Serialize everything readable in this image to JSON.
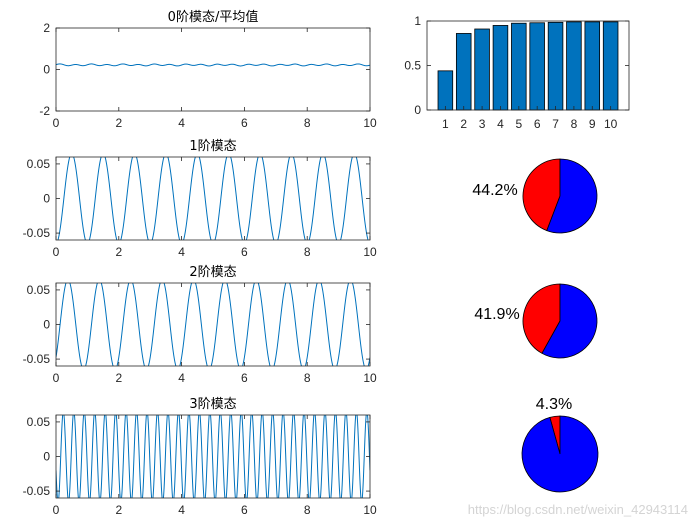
{
  "chart_data": [
    {
      "type": "line",
      "title": "0阶模态/平均值",
      "xlim": [
        0,
        10
      ],
      "ylim": [
        -2,
        2
      ],
      "xticks": [
        "0",
        "2",
        "4",
        "6",
        "8",
        "10"
      ],
      "yticks": [
        "-2",
        "0",
        "2"
      ],
      "series": [
        {
          "mean": 0.22,
          "amplitude": 0.035,
          "cycles_per_unit": 2.0,
          "color": "#0072bd"
        }
      ]
    },
    {
      "type": "bar",
      "categories": [
        "1",
        "2",
        "3",
        "4",
        "5",
        "6",
        "7",
        "8",
        "9",
        "10"
      ],
      "values": [
        0.44,
        0.86,
        0.91,
        0.95,
        0.975,
        0.98,
        0.985,
        0.99,
        0.99,
        0.99
      ],
      "ylim": [
        0,
        1
      ],
      "yticks": [
        "0",
        "0.5",
        "1"
      ],
      "color": "#0072bd"
    },
    {
      "type": "line",
      "title": "1阶模态",
      "xlim": [
        0,
        10
      ],
      "ylim": [
        -0.06,
        0.06
      ],
      "xticks": [
        "0",
        "2",
        "4",
        "6",
        "8",
        "10"
      ],
      "yticks": [
        "0.05",
        "0",
        "-0.05"
      ],
      "series": [
        {
          "amplitude": 0.065,
          "cycles_per_unit": 1.0,
          "phase_cycles": 0.5,
          "color": "#0072bd"
        }
      ]
    },
    {
      "type": "pie",
      "values": [
        44.2,
        55.8
      ],
      "labels": [
        "44.2%",
        ""
      ],
      "colors": [
        "#ff0000",
        "#0000ff"
      ]
    },
    {
      "type": "line",
      "title": "2阶模态",
      "xlim": [
        0,
        10
      ],
      "ylim": [
        -0.06,
        0.06
      ],
      "xticks": [
        "0",
        "2",
        "4",
        "6",
        "8",
        "10"
      ],
      "yticks": [
        "0.05",
        "0",
        "-0.05"
      ],
      "series": [
        {
          "amplitude": 0.065,
          "cycles_per_unit": 1.0,
          "phase_cycles": 0.62,
          "color": "#0072bd"
        }
      ]
    },
    {
      "type": "pie",
      "values": [
        41.9,
        58.1
      ],
      "labels": [
        "41.9%",
        ""
      ],
      "colors": [
        "#ff0000",
        "#0000ff"
      ]
    },
    {
      "type": "line",
      "title": "3阶模态",
      "xlim": [
        0,
        10
      ],
      "ylim": [
        -0.06,
        0.06
      ],
      "xticks": [
        "0",
        "2",
        "4",
        "6",
        "8",
        "10"
      ],
      "yticks": [
        "0.05",
        "0",
        "-0.05"
      ],
      "series": [
        {
          "amplitude": 0.065,
          "cycles_per_unit": 3.0,
          "phase_cycles": 0.3,
          "color": "#0072bd"
        }
      ]
    },
    {
      "type": "pie",
      "values": [
        4.3,
        95.7
      ],
      "labels": [
        "4.3%",
        ""
      ],
      "colors": [
        "#ff0000",
        "#0000ff"
      ]
    }
  ],
  "watermark": "https://blog.csdn.net/weixin_42943114"
}
